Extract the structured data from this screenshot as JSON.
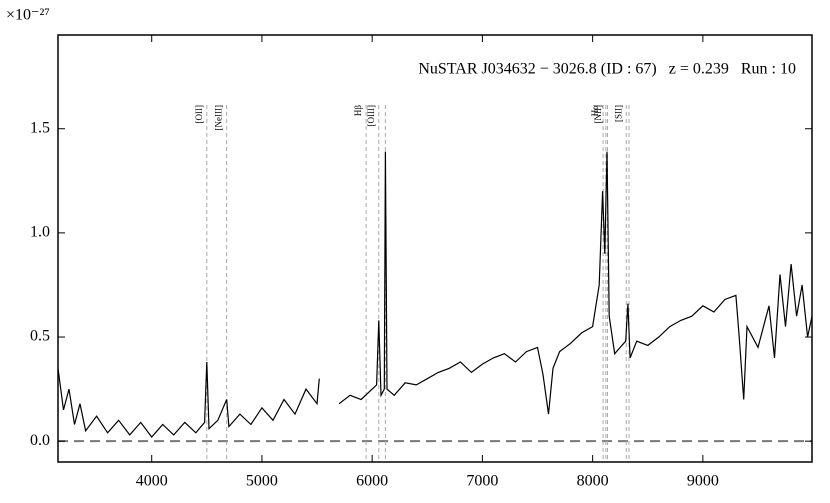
{
  "chart_data": {
    "type": "line",
    "annotation": "NuSTAR J034632 − 3026.8 (ID : 67)   z = 0.239   Run : 10",
    "y_offset_label": "×10⁻²⁷",
    "color": "#000000",
    "x": [
      3150,
      3200,
      3250,
      3300,
      3350,
      3400,
      3500,
      3600,
      3700,
      3800,
      3900,
      4000,
      4100,
      4200,
      4300,
      4400,
      4480,
      4500,
      4520,
      4600,
      4680,
      4700,
      4800,
      4900,
      5000,
      5100,
      5200,
      5300,
      5400,
      5500,
      5520,
      5600,
      5700,
      5800,
      5900,
      6000,
      6040,
      6060,
      6080,
      6110,
      6120,
      6135,
      6200,
      6300,
      6400,
      6500,
      6600,
      6700,
      6800,
      6900,
      7000,
      7100,
      7200,
      7300,
      7400,
      7500,
      7550,
      7600,
      7640,
      7700,
      7800,
      7900,
      8000,
      8060,
      8090,
      8110,
      8130,
      8150,
      8200,
      8250,
      8300,
      8320,
      8340,
      8400,
      8500,
      8600,
      8700,
      8800,
      8900,
      9000,
      9100,
      9200,
      9300,
      9330,
      9370,
      9400,
      9500,
      9600,
      9650,
      9700,
      9750,
      9800,
      9850,
      9900,
      9950,
      9990
    ],
    "values": [
      0.35,
      0.15,
      0.25,
      0.08,
      0.18,
      0.05,
      0.12,
      0.04,
      0.1,
      0.03,
      0.09,
      0.02,
      0.08,
      0.03,
      0.09,
      0.04,
      0.09,
      0.38,
      0.06,
      0.1,
      0.2,
      0.07,
      0.13,
      0.08,
      0.16,
      0.1,
      0.2,
      0.13,
      0.25,
      0.18,
      0.3,
      null,
      0.18,
      0.22,
      0.2,
      0.25,
      0.27,
      0.58,
      0.22,
      0.25,
      1.39,
      0.25,
      0.22,
      0.28,
      0.27,
      0.3,
      0.33,
      0.35,
      0.38,
      0.33,
      0.37,
      0.4,
      0.42,
      0.38,
      0.43,
      0.45,
      0.32,
      0.13,
      0.35,
      0.43,
      0.47,
      0.52,
      0.55,
      0.75,
      1.2,
      0.9,
      1.39,
      0.6,
      0.42,
      0.45,
      0.48,
      0.66,
      0.4,
      0.48,
      0.46,
      0.5,
      0.55,
      0.58,
      0.6,
      0.65,
      0.62,
      0.68,
      0.7,
      0.5,
      0.2,
      0.55,
      0.45,
      0.65,
      0.4,
      0.8,
      0.55,
      0.85,
      0.6,
      0.75,
      0.5,
      0.6
    ],
    "hline": 0,
    "line_markers": [
      {
        "label": "[OII]",
        "x": [
          4500
        ]
      },
      {
        "label": "[NeIII]",
        "x": [
          4680
        ]
      },
      {
        "label": "Hβ",
        "x": [
          5945
        ]
      },
      {
        "label": "[OIII]",
        "x": [
          6060,
          6120
        ]
      },
      {
        "label": "Hα",
        "x": [
          8095
        ]
      },
      {
        "label": "[NII]",
        "x": [
          8120,
          8135
        ]
      },
      {
        "label": "[SII]",
        "x": [
          8305,
          8330
        ]
      }
    ],
    "xlim": [
      3150,
      9990
    ],
    "ylim": [
      -0.1,
      1.95
    ],
    "xticks": [
      4000,
      5000,
      6000,
      7000,
      8000,
      9000
    ],
    "yticks": [
      {
        "value": 0,
        "label": "0.0"
      },
      0.5,
      {
        "value": 1,
        "label": "1.0"
      },
      1.5
    ]
  }
}
